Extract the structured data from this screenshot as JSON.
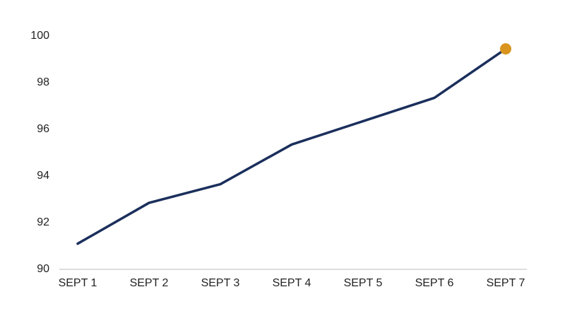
{
  "chart_data": {
    "type": "line",
    "categories": [
      "SEPT 1",
      "SEPT 2",
      "SEPT 3",
      "SEPT 4",
      "SEPT 5",
      "SEPT 6",
      "SEPT 7"
    ],
    "values": [
      91.1,
      92.85,
      93.65,
      95.35,
      96.35,
      97.35,
      99.45
    ],
    "color": "#1b2f5c",
    "highlight_color": "#d9941e",
    "ylim": [
      90,
      100
    ],
    "yticks": [
      90,
      92,
      94,
      96,
      98,
      100
    ],
    "grid": false
  }
}
